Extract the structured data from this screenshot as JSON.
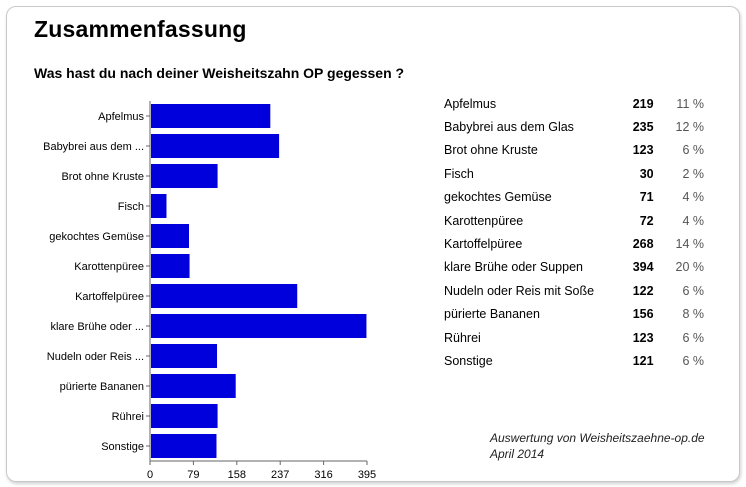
{
  "colors": {
    "bar": "#0000dd",
    "axis": "#666666"
  },
  "chart_data": {
    "type": "bar",
    "orientation": "horizontal",
    "title": "Zusammenfassung",
    "subtitle": "Was hast du nach deiner Weisheitszahn OP gegessen ?",
    "categories": [
      "Apfelmus",
      "Babybrei aus dem ...",
      "Brot ohne Kruste",
      "Fisch",
      "gekochtes Gemüse",
      "Karottenpüree",
      "Kartoffelpüree",
      "klare Brühe oder ...",
      "Nudeln oder Reis ...",
      "pürierte Bananen",
      "Rührei",
      "Sonstige"
    ],
    "values": [
      219,
      235,
      123,
      30,
      71,
      72,
      268,
      394,
      122,
      156,
      123,
      121
    ],
    "xlim": [
      0,
      395
    ],
    "xticks": [
      "0",
      "79",
      "158",
      "237",
      "316",
      "395"
    ],
    "grid": false
  },
  "table": {
    "rows": [
      {
        "label": "Apfelmus",
        "count": "219",
        "pct": "11 %"
      },
      {
        "label": "Babybrei aus dem Glas",
        "count": "235",
        "pct": "12 %"
      },
      {
        "label": "Brot ohne Kruste",
        "count": "123",
        "pct": "6 %"
      },
      {
        "label": "Fisch",
        "count": "30",
        "pct": "2 %"
      },
      {
        "label": "gekochtes Gemüse",
        "count": "71",
        "pct": "4 %"
      },
      {
        "label": "Karottenpüree",
        "count": "72",
        "pct": "4 %"
      },
      {
        "label": "Kartoffelpüree",
        "count": "268",
        "pct": "14 %"
      },
      {
        "label": "klare Brühe oder Suppen",
        "count": "394",
        "pct": "20 %"
      },
      {
        "label": "Nudeln oder Reis mit Soße",
        "count": "122",
        "pct": "6 %"
      },
      {
        "label": "pürierte Bananen",
        "count": "156",
        "pct": "8 %"
      },
      {
        "label": "Rührei",
        "count": "123",
        "pct": "6 %"
      },
      {
        "label": "Sonstige",
        "count": "121",
        "pct": "6 %"
      }
    ]
  },
  "source": {
    "line1": "Auswertung von Weisheitszaehne-op.de",
    "line2": "April 2014"
  }
}
